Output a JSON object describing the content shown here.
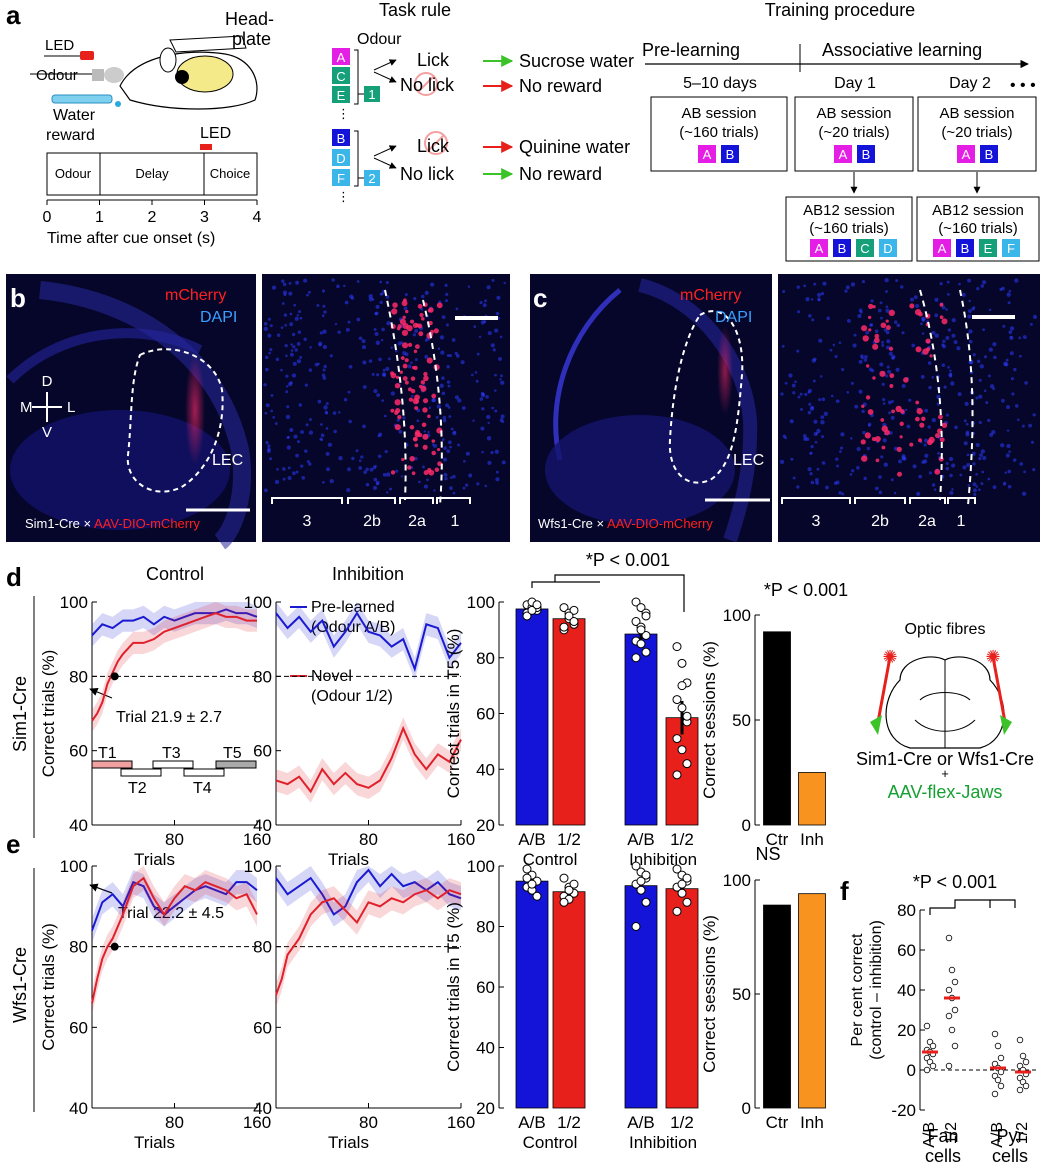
{
  "colors": {
    "magenta": "#e51ee5",
    "blue": "#1414d9",
    "teal": "#16a07a",
    "cyan": "#3bb6e8",
    "red": "#e8201c",
    "green": "#3cc32a",
    "orange": "#f7931e",
    "pre_line": "#1a1ad0",
    "novel_line": "#e0202a",
    "micro_bg": "#06062a"
  },
  "panel_a": {
    "letter": "a",
    "setup": {
      "led": "LED",
      "odour": "Odour",
      "water_reward": [
        "Water",
        "reward"
      ],
      "headplate": [
        "Head-",
        "plate"
      ]
    },
    "timeline": {
      "led": "LED",
      "phases": [
        "Odour",
        "Delay",
        "Choice"
      ],
      "ticks": [
        "0",
        "1",
        "2",
        "3",
        "4"
      ],
      "axis_label": "Time after cue onset (s)"
    },
    "task_rule": {
      "title": "Task rule",
      "odour_label": "Odour",
      "dots": "⋮",
      "group1": {
        "odours": [
          "A",
          "C",
          "E"
        ],
        "number": "1",
        "lick": "Lick",
        "nolick": "No lick",
        "lick_outcome": "Sucrose water",
        "nolick_outcome": "No reward"
      },
      "group2": {
        "odours": [
          "B",
          "D",
          "F"
        ],
        "number": "2",
        "lick": "Lick",
        "nolick": "No lick",
        "lick_outcome": "Quinine water",
        "nolick_outcome": "No reward"
      }
    },
    "training": {
      "title": "Training procedure",
      "pre": "Pre-learning",
      "assoc": "Associative learning",
      "days": [
        "5–10 days",
        "Day 1",
        "Day 2"
      ],
      "ellipsis": "• • •",
      "box_pre": {
        "name": "AB session",
        "trials": "(~160 trials)",
        "odours": [
          "A",
          "B"
        ]
      },
      "box_d1": {
        "name": "AB session",
        "trials": "(~20 trials)",
        "odours": [
          "A",
          "B"
        ]
      },
      "box_d2": {
        "name": "AB session",
        "trials": "(~20 trials)",
        "odours": [
          "A",
          "B"
        ]
      },
      "box_d1b": {
        "name": "AB12 session",
        "trials": "(~160 trials)",
        "odours": [
          "A",
          "B",
          "C",
          "D"
        ]
      },
      "box_d2b": {
        "name": "AB12 session",
        "trials": "(~160 trials)",
        "odours": [
          "A",
          "B",
          "E",
          "F"
        ]
      }
    }
  },
  "panel_b": {
    "letter": "b",
    "mcherry": "mCherry",
    "dapi": "DAPI",
    "compass": {
      "d": "D",
      "m": "M",
      "l": "L",
      "v": "V"
    },
    "region": "LEC",
    "caption_prefix": "Sim1-Cre × ",
    "caption_virus": "AAV-DIO-mCherry",
    "layers": [
      "3",
      "2b",
      "2a",
      "1"
    ]
  },
  "panel_c": {
    "letter": "c",
    "mcherry": "mCherry",
    "dapi": "DAPI",
    "region": "LEC",
    "caption_prefix": "Wfs1-Cre × ",
    "caption_virus": "AAV-DIO-mCherry",
    "layers": [
      "3",
      "2b",
      "2a",
      "1"
    ]
  },
  "panel_d": {
    "letter": "d",
    "row_label": "Sim1-Cre",
    "titles": {
      "control": "Control",
      "inhibition": "Inhibition"
    },
    "legend": {
      "pre": [
        "Pre-learned",
        "(Odour A/B)"
      ],
      "novel": [
        "Novel",
        "(Odour 1/2)"
      ]
    },
    "annotation": "Trial 21.9 ± 2.7",
    "bins": [
      "T1",
      "T2",
      "T3",
      "T4",
      "T5"
    ],
    "stat": "*P < 0.001",
    "stat_sessions": "*P < 0.001"
  },
  "panel_e": {
    "letter": "e",
    "row_label": "Wfs1-Cre",
    "annotation": "Trial 22.2 ± 4.5",
    "stat_sessions": "NS"
  },
  "panel_f": {
    "letter": "f",
    "stat": "*P < 0.001",
    "ylabel": [
      "Per cent correct",
      "(control – inhibition)"
    ],
    "groups": [
      "Fan",
      "cells",
      "Pyr",
      "cells"
    ]
  },
  "schematic": {
    "title": "Optic fibres",
    "line1": "Sim1-Cre or Wfs1-Cre",
    "plus": "+",
    "line2": "AAV-flex-Jaws"
  },
  "axes": {
    "trials": "Trials",
    "correct_trials": "Correct trials (%)",
    "correct_t5": "Correct trials in T5 (%)",
    "correct_sessions": "Correct sessions (%)",
    "bar_cats": [
      "A/B",
      "1/2",
      "A/B",
      "1/2"
    ],
    "bar_groups": [
      "Control",
      "Inhibition"
    ],
    "session_cats": [
      "Ctr",
      "Inh"
    ]
  },
  "chart_data": [
    {
      "id": "d-control",
      "type": "line",
      "title": "Control",
      "xlabel": "Trials",
      "ylabel": "Correct trials (%)",
      "xlim": [
        0,
        160
      ],
      "ylim": [
        40,
        100
      ],
      "xticks": [
        80,
        160
      ],
      "yticks": [
        40,
        60,
        80,
        100
      ],
      "hline": 80,
      "series": [
        {
          "name": "Pre-learned (Odour A/B)",
          "color": "#1a1ad0",
          "x": [
            0,
            10,
            20,
            30,
            40,
            50,
            60,
            70,
            80,
            90,
            100,
            110,
            120,
            130,
            140,
            150,
            160
          ],
          "y": [
            91,
            94,
            93,
            95,
            95,
            96,
            94,
            96,
            95,
            96,
            97,
            97,
            97,
            98,
            97,
            97,
            96
          ]
        },
        {
          "name": "Novel (Odour 1/2)",
          "color": "#e0202a",
          "x": [
            0,
            5,
            10,
            15,
            20,
            25,
            30,
            40,
            50,
            60,
            70,
            80,
            90,
            100,
            110,
            120,
            130,
            140,
            150,
            160
          ],
          "y": [
            68,
            70,
            73,
            78,
            81,
            84,
            86,
            89,
            89,
            90,
            92,
            93,
            94,
            95,
            96,
            97,
            96,
            96,
            95,
            95
          ]
        }
      ]
    },
    {
      "id": "d-inhibition",
      "type": "line",
      "title": "Inhibition",
      "xlabel": "Trials",
      "xlim": [
        0,
        160
      ],
      "ylim": [
        40,
        100
      ],
      "xticks": [
        80,
        160
      ],
      "yticks": [
        40,
        60,
        80,
        100
      ],
      "hline": 80,
      "series": [
        {
          "name": "Pre-learned (Odour A/B)",
          "color": "#1a1ad0",
          "x": [
            0,
            10,
            20,
            30,
            40,
            50,
            60,
            70,
            80,
            90,
            100,
            110,
            120,
            130,
            140,
            150,
            160
          ],
          "y": [
            97,
            93,
            96,
            92,
            95,
            88,
            92,
            97,
            92,
            91,
            88,
            90,
            82,
            94,
            93,
            85,
            89
          ]
        },
        {
          "name": "Novel (Odour 1/2)",
          "color": "#e0202a",
          "x": [
            0,
            10,
            20,
            30,
            40,
            50,
            60,
            70,
            80,
            90,
            100,
            110,
            120,
            130,
            140,
            150,
            160
          ],
          "y": [
            52,
            51,
            53,
            49,
            55,
            51,
            54,
            51,
            50,
            52,
            58,
            66,
            59,
            55,
            59,
            57,
            63
          ]
        }
      ]
    },
    {
      "id": "d-t5",
      "type": "bar",
      "ylabel": "Correct trials in T5 (%)",
      "ylim": [
        20,
        100
      ],
      "yticks": [
        20,
        40,
        60,
        80,
        100
      ],
      "categories": [
        "A/B",
        "1/2",
        "A/B",
        "1/2"
      ],
      "values": [
        97.5,
        94,
        88.5,
        58.5
      ],
      "errors": [
        1,
        1.5,
        2,
        6
      ],
      "colors": [
        "#1414d9",
        "#e8201c",
        "#1414d9",
        "#e8201c"
      ],
      "points": [
        [
          99,
          98,
          97,
          96,
          100,
          98,
          95,
          97,
          99
        ],
        [
          98,
          96,
          92,
          90,
          94,
          97,
          91,
          95,
          93
        ],
        [
          100,
          98,
          96,
          93,
          91,
          88,
          86,
          85,
          82,
          80,
          90,
          95
        ],
        [
          84,
          78,
          71,
          65,
          62,
          57,
          51,
          47,
          42,
          38,
          70,
          59
        ]
      ]
    },
    {
      "id": "d-sessions",
      "type": "bar",
      "ylabel": "Correct sessions (%)",
      "ylim": [
        0,
        100
      ],
      "yticks": [
        0,
        50,
        100
      ],
      "categories": [
        "Ctr",
        "Inh"
      ],
      "values": [
        92,
        25
      ],
      "colors": [
        "#000000",
        "#f7931e"
      ]
    },
    {
      "id": "e-control",
      "type": "line",
      "xlabel": "Trials",
      "ylabel": "Correct trials (%)",
      "xlim": [
        0,
        160
      ],
      "ylim": [
        40,
        100
      ],
      "xticks": [
        80,
        160
      ],
      "yticks": [
        40,
        60,
        80,
        100
      ],
      "hline": 80,
      "series": [
        {
          "name": "Pre-learned (Odour A/B)",
          "color": "#1a1ad0",
          "x": [
            0,
            10,
            20,
            30,
            40,
            50,
            60,
            70,
            80,
            90,
            100,
            110,
            120,
            130,
            140,
            150,
            160
          ],
          "y": [
            84,
            91,
            93,
            90,
            96,
            95,
            90,
            88,
            90,
            92,
            94,
            95,
            94,
            93,
            96,
            96,
            94
          ]
        },
        {
          "name": "Novel (Odour 1/2)",
          "color": "#e0202a",
          "x": [
            0,
            5,
            10,
            15,
            20,
            30,
            40,
            50,
            60,
            70,
            80,
            90,
            100,
            110,
            120,
            130,
            140,
            150,
            160
          ],
          "y": [
            66,
            72,
            77,
            80,
            82,
            88,
            95,
            97,
            92,
            88,
            92,
            95,
            94,
            96,
            95,
            94,
            92,
            93,
            88
          ]
        }
      ]
    },
    {
      "id": "e-inhibition",
      "type": "line",
      "xlabel": "Trials",
      "xlim": [
        0,
        160
      ],
      "ylim": [
        40,
        100
      ],
      "xticks": [
        80,
        160
      ],
      "yticks": [
        40,
        60,
        80,
        100
      ],
      "hline": 80,
      "series": [
        {
          "name": "Pre-learned (Odour A/B)",
          "color": "#1a1ad0",
          "x": [
            0,
            10,
            20,
            30,
            40,
            50,
            60,
            70,
            80,
            90,
            100,
            110,
            120,
            130,
            140,
            150,
            160
          ],
          "y": [
            97,
            93,
            95,
            97,
            93,
            88,
            90,
            96,
            99,
            95,
            98,
            95,
            96,
            94,
            96,
            93,
            92
          ]
        },
        {
          "name": "Novel (Odour 1/2)",
          "color": "#e0202a",
          "x": [
            0,
            5,
            10,
            15,
            20,
            30,
            40,
            50,
            60,
            70,
            80,
            90,
            100,
            110,
            120,
            130,
            140,
            150,
            160
          ],
          "y": [
            68,
            72,
            78,
            80,
            82,
            88,
            91,
            92,
            89,
            86,
            91,
            90,
            92,
            91,
            93,
            94,
            92,
            94,
            93
          ]
        }
      ]
    },
    {
      "id": "e-t5",
      "type": "bar",
      "ylabel": "Correct trials in T5 (%)",
      "ylim": [
        20,
        100
      ],
      "yticks": [
        20,
        40,
        60,
        80,
        100
      ],
      "categories": [
        "A/B",
        "1/2",
        "A/B",
        "1/2"
      ],
      "values": [
        95,
        91.5,
        93.5,
        92.5
      ],
      "errors": [
        1.5,
        1,
        1.5,
        1.5
      ],
      "colors": [
        "#1414d9",
        "#e8201c",
        "#1414d9",
        "#e8201c"
      ],
      "points": [
        [
          99,
          97,
          95,
          93,
          92,
          90,
          96,
          94
        ],
        [
          96,
          93,
          91,
          90,
          89,
          94,
          88,
          92
        ],
        [
          100,
          98,
          96,
          94,
          92,
          88,
          80,
          95,
          97
        ],
        [
          99,
          97,
          95,
          93,
          91,
          88,
          85,
          94,
          96
        ]
      ]
    },
    {
      "id": "e-sessions",
      "type": "bar",
      "ylabel": "Correct sessions (%)",
      "ylim": [
        0,
        100
      ],
      "yticks": [
        0,
        50,
        100
      ],
      "categories": [
        "Ctr",
        "Inh"
      ],
      "values": [
        89,
        94
      ],
      "colors": [
        "#000000",
        "#f7931e"
      ]
    },
    {
      "id": "f",
      "type": "scatter",
      "ylabel": "Per cent correct (control – inhibition)",
      "ylim": [
        -20,
        80
      ],
      "yticks": [
        -20,
        0,
        20,
        40,
        60,
        80
      ],
      "categories": [
        "A/B",
        "1/2",
        "A/B",
        "1/2"
      ],
      "medians": [
        9,
        36,
        1,
        -1
      ],
      "points": [
        [
          22,
          14,
          12,
          10,
          9,
          8,
          6,
          4,
          2,
          0
        ],
        [
          66,
          50,
          44,
          40,
          36,
          30,
          27,
          20,
          12,
          2
        ],
        [
          18,
          12,
          6,
          3,
          1,
          -1,
          -3,
          -5,
          -8,
          -12
        ],
        [
          15,
          7,
          4,
          2,
          0,
          -2,
          -4,
          -6,
          -8,
          -10
        ]
      ]
    }
  ]
}
